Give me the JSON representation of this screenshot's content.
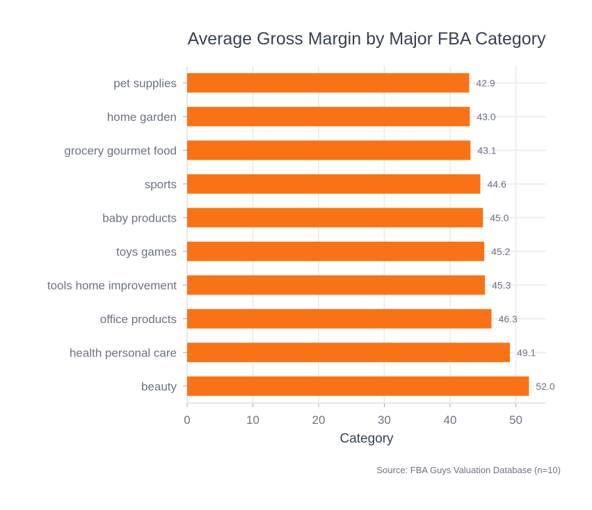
{
  "chart_data": {
    "type": "bar",
    "orientation": "horizontal",
    "title": "Average Gross Margin by Major FBA Category",
    "xlabel": "Category",
    "ylabel": "",
    "categories": [
      "pet supplies",
      "home garden",
      "grocery gourmet food",
      "sports",
      "baby products",
      "toys games",
      "tools home improvement",
      "office products",
      "health personal care",
      "beauty"
    ],
    "values": [
      42.9,
      43.0,
      43.1,
      44.6,
      45.0,
      45.2,
      45.3,
      46.3,
      49.1,
      52.0
    ],
    "data_labels": [
      "42.9",
      "43.0",
      "43.1",
      "44.6",
      "45.0",
      "45.2",
      "45.3",
      "46.3",
      "49.1",
      "52.0"
    ],
    "xlim": [
      0,
      54.6
    ],
    "xticks": [
      0,
      10,
      20,
      30,
      40,
      50
    ],
    "grid": true,
    "bar_color": "#f97316",
    "source": "Source: FBA Guys Valuation Database (n=10)"
  }
}
